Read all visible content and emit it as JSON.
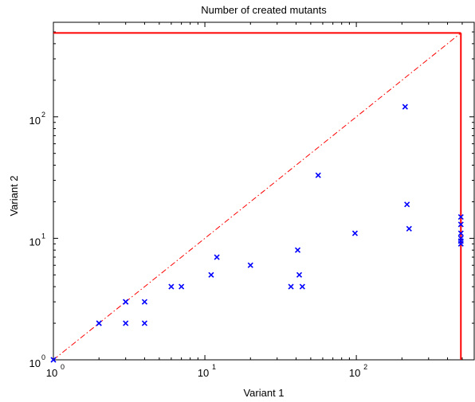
{
  "chart_data": {
    "type": "scatter",
    "title": "Number of created mutants",
    "xlabel": "Variant 1",
    "ylabel": "Variant 2",
    "xscale": "log",
    "yscale": "log",
    "xlim": [
      1,
      600
    ],
    "ylim": [
      1,
      600
    ],
    "x_ticks": [
      {
        "value": 1,
        "base": "10",
        "exp": "0"
      },
      {
        "value": 10,
        "base": "10",
        "exp": "1"
      },
      {
        "value": 100,
        "base": "10",
        "exp": "2"
      }
    ],
    "y_ticks": [
      {
        "value": 1,
        "base": "10",
        "exp": "0"
      },
      {
        "value": 10,
        "base": "10",
        "exp": "1"
      },
      {
        "value": 100,
        "base": "10",
        "exp": "2"
      }
    ],
    "grid": false,
    "marker": "x",
    "marker_color": "#0000ff",
    "diagonal": {
      "style": "dash-dot",
      "color": "#ff0000",
      "from": [
        1,
        1
      ],
      "to": [
        490,
        490
      ]
    },
    "limit_lines": {
      "color": "#ff0000",
      "value": 490
    },
    "points": [
      {
        "x": 1,
        "y": 1
      },
      {
        "x": 2,
        "y": 2
      },
      {
        "x": 2,
        "y": 2
      },
      {
        "x": 3,
        "y": 2
      },
      {
        "x": 3,
        "y": 3
      },
      {
        "x": 3,
        "y": 3
      },
      {
        "x": 4,
        "y": 2
      },
      {
        "x": 4,
        "y": 3
      },
      {
        "x": 6,
        "y": 4
      },
      {
        "x": 7,
        "y": 4
      },
      {
        "x": 11,
        "y": 5
      },
      {
        "x": 12,
        "y": 7
      },
      {
        "x": 20,
        "y": 6
      },
      {
        "x": 37,
        "y": 4
      },
      {
        "x": 41,
        "y": 8
      },
      {
        "x": 42,
        "y": 5
      },
      {
        "x": 44,
        "y": 4
      },
      {
        "x": 56,
        "y": 33
      },
      {
        "x": 98,
        "y": 11
      },
      {
        "x": 210,
        "y": 121
      },
      {
        "x": 216,
        "y": 19
      },
      {
        "x": 223,
        "y": 12
      },
      {
        "x": 490,
        "y": 15
      },
      {
        "x": 490,
        "y": 13
      },
      {
        "x": 490,
        "y": 11
      },
      {
        "x": 490,
        "y": 10
      },
      {
        "x": 490,
        "y": 9.5
      },
      {
        "x": 490,
        "y": 9
      }
    ]
  }
}
